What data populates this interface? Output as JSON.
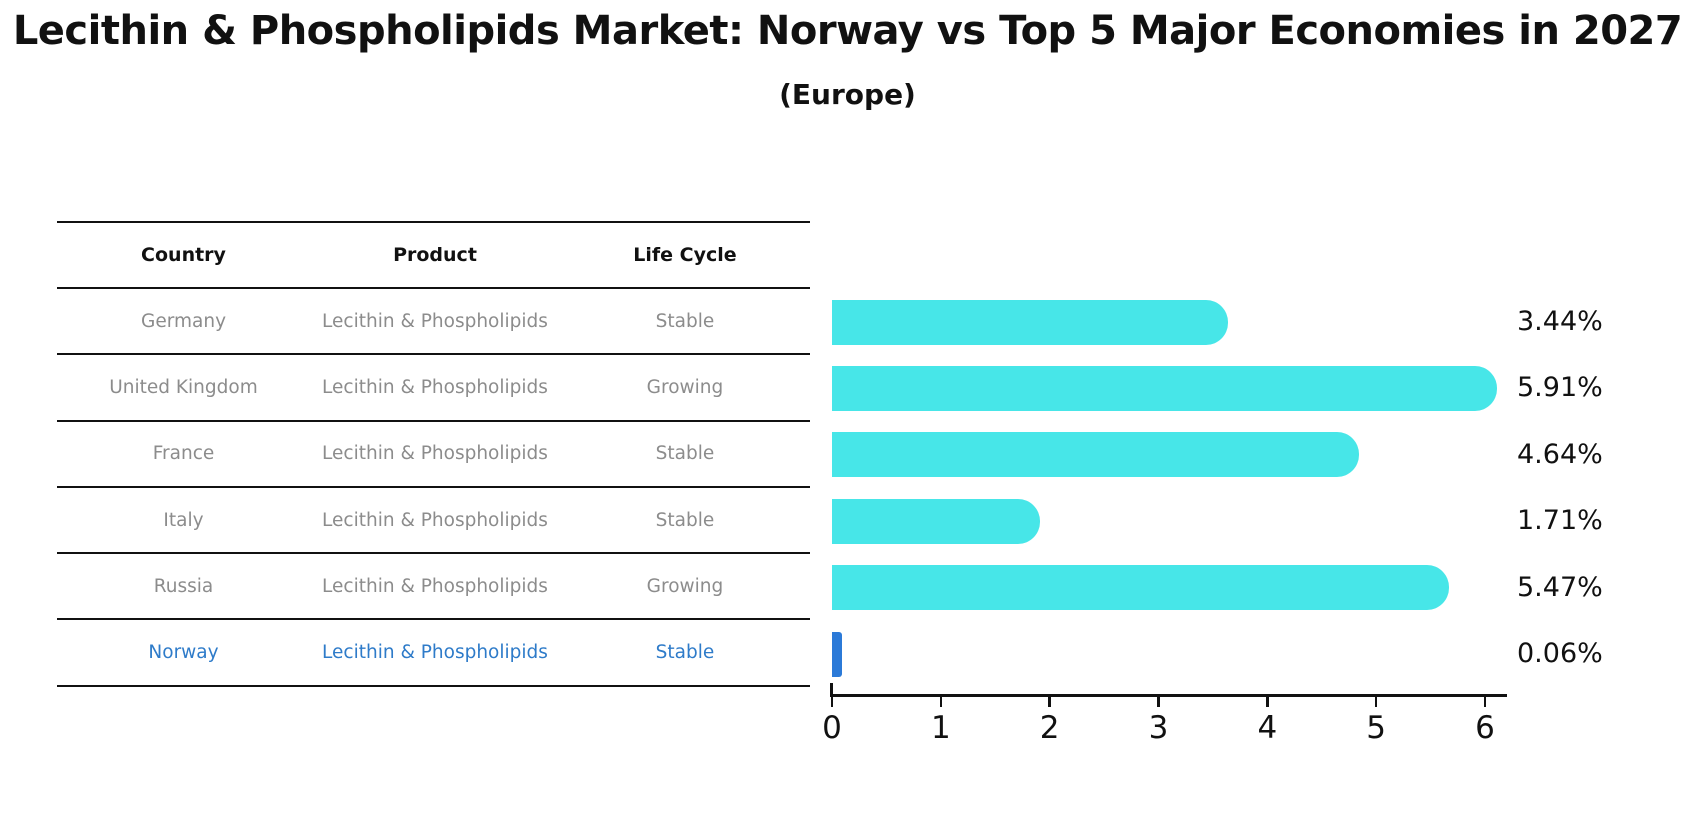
{
  "header": {
    "title": "Lecithin & Phospholipids Market: Norway vs Top 5 Major Economies in 2027",
    "subtitle": "(Europe)"
  },
  "table": {
    "columns": [
      "Country",
      "Product",
      "Life Cycle"
    ],
    "rows": [
      {
        "country": "Germany",
        "product": "Lecithin & Phospholipids",
        "life_cycle": "Stable",
        "highlight": false
      },
      {
        "country": "United Kingdom",
        "product": "Lecithin & Phospholipids",
        "life_cycle": "Growing",
        "highlight": false
      },
      {
        "country": "France",
        "product": "Lecithin & Phospholipids",
        "life_cycle": "Stable",
        "highlight": false
      },
      {
        "country": "Italy",
        "product": "Lecithin & Phospholipids",
        "life_cycle": "Stable",
        "highlight": false
      },
      {
        "country": "Russia",
        "product": "Lecithin & Phospholipids",
        "life_cycle": "Growing",
        "highlight": false
      },
      {
        "country": "Norway",
        "product": "Lecithin & Phospholipids",
        "life_cycle": "Stable",
        "highlight": true
      }
    ]
  },
  "chart_data": {
    "type": "bar",
    "orientation": "horizontal",
    "title": "Lecithin & Phospholipids Market: Norway vs Top 5 Major Economies in 2027 (Europe)",
    "categories": [
      "Germany",
      "United Kingdom",
      "France",
      "Italy",
      "Russia",
      "Norway"
    ],
    "values": [
      3.44,
      5.91,
      4.64,
      1.71,
      5.47,
      0.06
    ],
    "value_labels": [
      "3.44%",
      "5.91%",
      "4.64%",
      "1.71%",
      "5.47%",
      "0.06%"
    ],
    "unit": "%",
    "xlim": [
      0,
      6.2
    ],
    "xticks": [
      0,
      1,
      2,
      3,
      4,
      5,
      6
    ],
    "grid": false,
    "legend": false,
    "bar_color": "#47E6E8",
    "highlight_color": "#2B7AD8",
    "highlight_index": 5,
    "label_color": "#111111"
  },
  "colors": {
    "background": "#ffffff",
    "table_line": "#111111",
    "table_header_text": "#111111",
    "table_body_text": "#8c8c8c",
    "highlight_row_text": "#2e7bc9"
  }
}
